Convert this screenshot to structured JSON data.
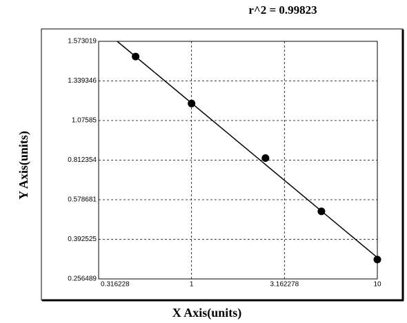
{
  "chart_data": {
    "type": "scatter",
    "title": "r^2 = 0.99823",
    "x_label": "X Axis(units)",
    "y_label": "Y Axis(units)",
    "xscale": "log",
    "xlim": [
      0.316228,
      10
    ],
    "xticks": [
      0.316228,
      1,
      3.162278,
      10
    ],
    "ylim": [
      0.256489,
      1.573019
    ],
    "yticks": [
      0.256489,
      0.392525,
      0.578681,
      0.812354,
      1.07585,
      1.339346,
      1.573019
    ],
    "grid": true,
    "series": [
      {
        "color": "#000000",
        "x": [
          0.5,
          1,
          2.5,
          5,
          10
        ],
        "values": [
          1.483,
          1.189,
          0.826,
          0.524,
          0.323
        ]
      }
    ],
    "fit_line": {
      "color": "#000000",
      "x": [
        0.398,
        10
      ],
      "values": [
        1.573,
        0.33
      ]
    }
  }
}
